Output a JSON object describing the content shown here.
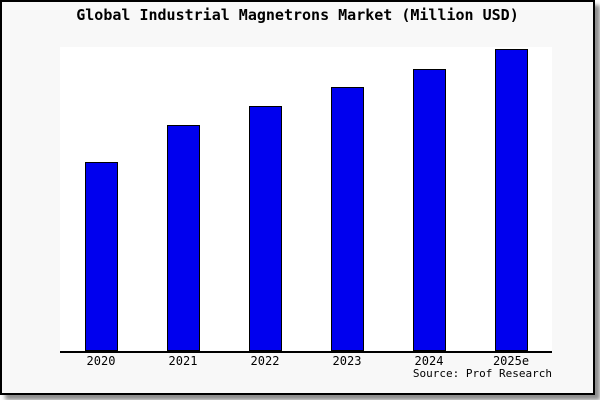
{
  "frame": {
    "background": "#f8f8f8",
    "border_color": "#000000",
    "shadow_color": "#737373"
  },
  "chart_data": {
    "type": "bar",
    "title": "Global Industrial Magnetrons Market (Million USD)",
    "categories": [
      "2020",
      "2021",
      "2022",
      "2023",
      "2024",
      "2025e"
    ],
    "values": [
      189,
      226,
      245,
      264,
      282,
      302
    ],
    "values_note": "y-axis has no tick labels or gridlines; values are relative bar heights estimated in pixels from a zero baseline",
    "xlabel": "",
    "ylabel": "",
    "grid": false,
    "legend_position": "none",
    "bar_color": "#0000ee",
    "bar_border_color": "#000000",
    "plot_background": "#ffffff",
    "axis_color": "#000000",
    "source_label": "Source: Prof Research"
  }
}
